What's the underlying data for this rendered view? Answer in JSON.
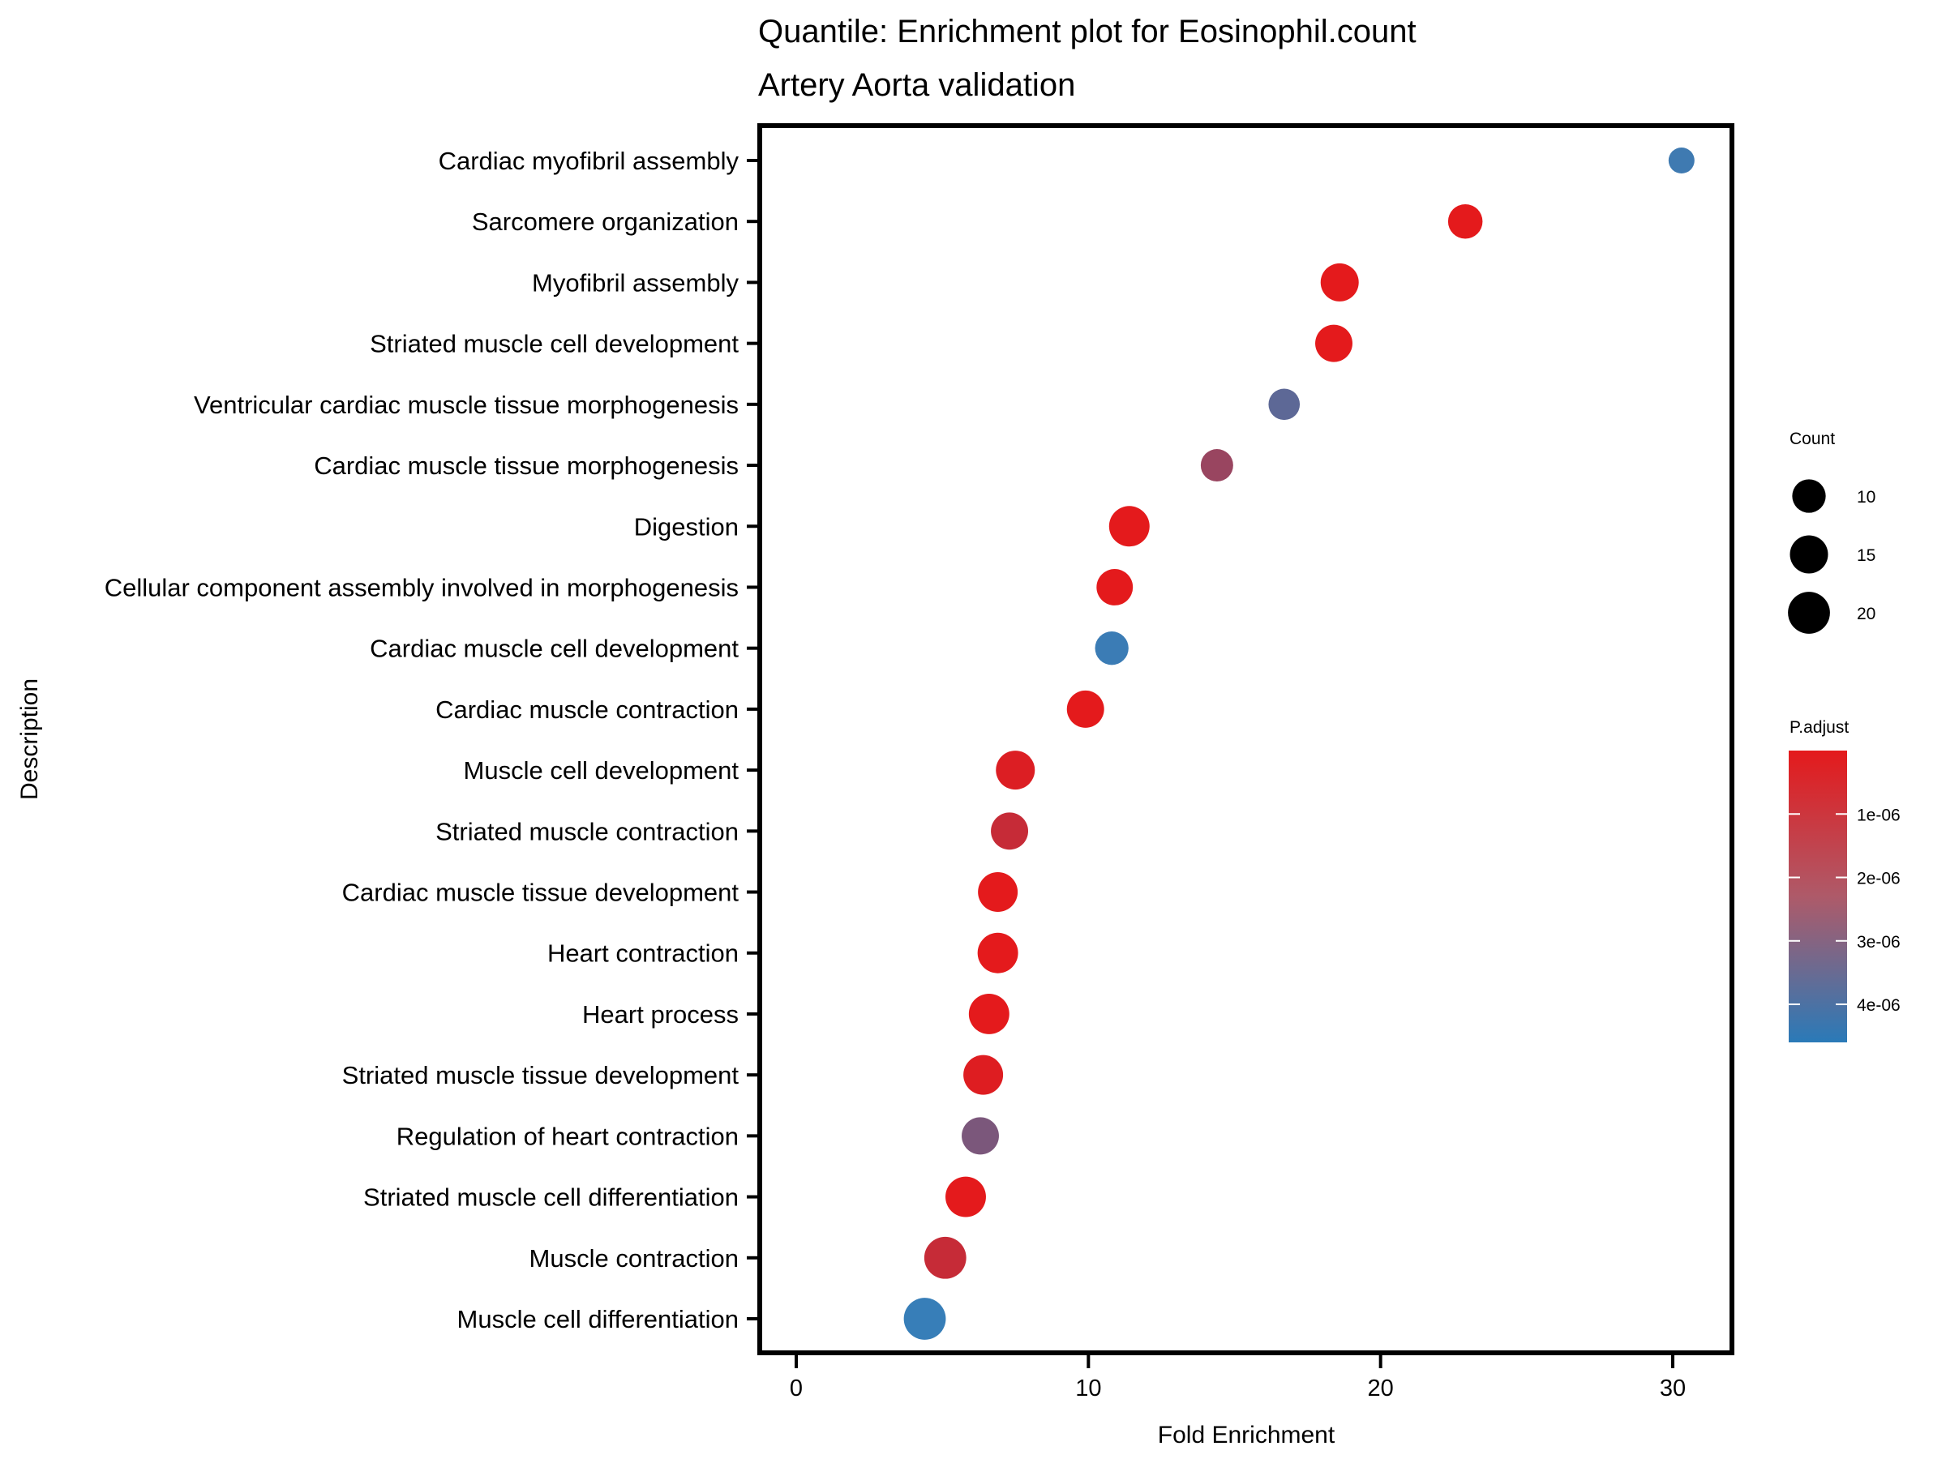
{
  "chart_data": {
    "type": "scatter",
    "title": "Quantile: Enrichment plot for Eosinophil.count",
    "subtitle": "Artery Aorta validation",
    "xlabel": "Fold Enrichment",
    "ylabel": "Description",
    "xlim": [
      -1.5,
      31.8
    ],
    "x_ticks": [
      0,
      10,
      20,
      30
    ],
    "grid": false,
    "categories": [
      "Cardiac myofibril assembly",
      "Sarcomere organization",
      "Myofibril assembly",
      "Striated muscle cell development",
      "Ventricular cardiac muscle tissue morphogenesis",
      "Cardiac muscle tissue morphogenesis",
      "Digestion",
      "Cellular component assembly involved in morphogenesis",
      "Cardiac muscle cell development",
      "Cardiac muscle contraction",
      "Muscle cell development",
      "Striated muscle contraction",
      "Cardiac muscle tissue development",
      "Heart contraction",
      "Heart process",
      "Striated muscle tissue development",
      "Regulation of heart contraction",
      "Striated muscle cell differentiation",
      "Muscle contraction",
      "Muscle cell differentiation"
    ],
    "points": [
      {
        "description": "Cardiac myofibril assembly",
        "fold_enrichment": 30.3,
        "count": 4,
        "p_adjust": 4.4e-06
      },
      {
        "description": "Sarcomere organization",
        "fold_enrichment": 22.9,
        "count": 11,
        "p_adjust": 1e-08
      },
      {
        "description": "Myofibril assembly",
        "fold_enrichment": 18.6,
        "count": 15,
        "p_adjust": 1e-08
      },
      {
        "description": "Striated muscle cell development",
        "fold_enrichment": 18.4,
        "count": 14,
        "p_adjust": 1e-08
      },
      {
        "description": "Ventricular cardiac muscle tissue morphogenesis",
        "fold_enrichment": 16.7,
        "count": 8,
        "p_adjust": 3.6e-06
      },
      {
        "description": "Cardiac muscle tissue morphogenesis",
        "fold_enrichment": 14.4,
        "count": 9,
        "p_adjust": 2e-06
      },
      {
        "description": "Digestion",
        "fold_enrichment": 11.4,
        "count": 18,
        "p_adjust": 1e-08
      },
      {
        "description": "Cellular component assembly involved in morphogenesis",
        "fold_enrichment": 10.9,
        "count": 13,
        "p_adjust": 1e-08
      },
      {
        "description": "Cardiac muscle cell development",
        "fold_enrichment": 10.8,
        "count": 10,
        "p_adjust": 4.5e-06
      },
      {
        "description": "Cardiac muscle contraction",
        "fold_enrichment": 9.9,
        "count": 14,
        "p_adjust": 1e-08
      },
      {
        "description": "Muscle cell development",
        "fold_enrichment": 7.5,
        "count": 16,
        "p_adjust": 2e-07
      },
      {
        "description": "Striated muscle contraction",
        "fold_enrichment": 7.3,
        "count": 14,
        "p_adjust": 8e-07
      },
      {
        "description": "Cardiac muscle tissue development",
        "fold_enrichment": 6.9,
        "count": 17,
        "p_adjust": 1e-08
      },
      {
        "description": "Heart contraction",
        "fold_enrichment": 6.9,
        "count": 18,
        "p_adjust": 1e-08
      },
      {
        "description": "Heart process",
        "fold_enrichment": 6.6,
        "count": 18,
        "p_adjust": 1e-08
      },
      {
        "description": "Striated muscle tissue development",
        "fold_enrichment": 6.4,
        "count": 17,
        "p_adjust": 1.5e-07
      },
      {
        "description": "Regulation of heart contraction",
        "fold_enrichment": 6.3,
        "count": 14,
        "p_adjust": 2.8e-06
      },
      {
        "description": "Striated muscle cell differentiation",
        "fold_enrichment": 5.8,
        "count": 18,
        "p_adjust": 1e-08
      },
      {
        "description": "Muscle contraction",
        "fold_enrichment": 5.1,
        "count": 20,
        "p_adjust": 8e-07
      },
      {
        "description": "Muscle cell differentiation",
        "fold_enrichment": 4.4,
        "count": 20,
        "p_adjust": 4.6e-06
      }
    ],
    "legend_size": {
      "title": "Count",
      "entries": [
        {
          "label": "10",
          "value": 10
        },
        {
          "label": "15",
          "value": 15
        },
        {
          "label": "20",
          "value": 20
        }
      ]
    },
    "legend_color": {
      "title": "P.adjust",
      "low_color": "#e41a1c",
      "high_color": "#377eb8",
      "range": [
        0,
        4.6e-06
      ],
      "ticks": [
        {
          "label": "1e-06",
          "value": 1e-06
        },
        {
          "label": "2e-06",
          "value": 2e-06
        },
        {
          "label": "3e-06",
          "value": 3e-06
        },
        {
          "label": "4e-06",
          "value": 4e-06
        }
      ]
    },
    "legend_placement": "right"
  }
}
